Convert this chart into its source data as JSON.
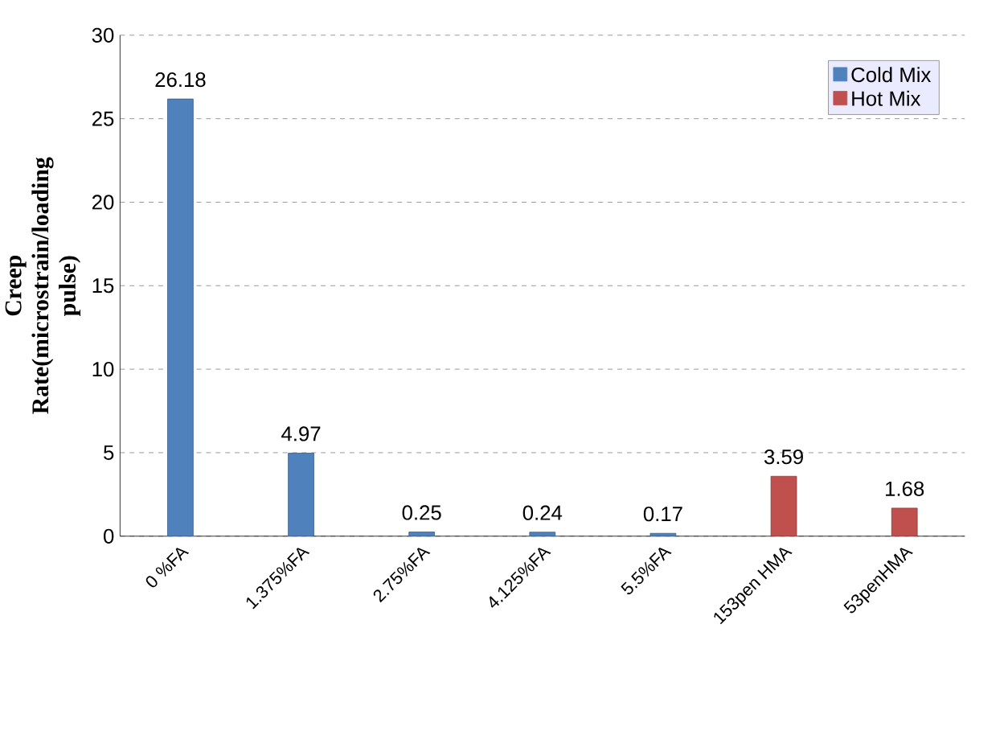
{
  "chart_data": {
    "type": "bar",
    "ylabel": "Creep Rate(microstrain/loading pulse)",
    "categories": [
      "0 %FA",
      "1.375%FA",
      "2.75%FA",
      "4.125%FA",
      "5.5%FA",
      "153pen HMA",
      "53penHMA"
    ],
    "series": [
      {
        "name": "Cold Mix",
        "color": "#4f81bd",
        "values": [
          26.18,
          4.97,
          0.25,
          0.24,
          0.17,
          null,
          null
        ]
      },
      {
        "name": "Hot Mix",
        "color": "#c0504d",
        "values": [
          null,
          null,
          null,
          null,
          null,
          3.59,
          1.68
        ]
      }
    ],
    "ylim": [
      0,
      30
    ],
    "yticks": [
      0,
      5,
      10,
      15,
      20,
      25,
      30
    ],
    "grid": "y",
    "legend": "top right",
    "data_labels": true
  }
}
